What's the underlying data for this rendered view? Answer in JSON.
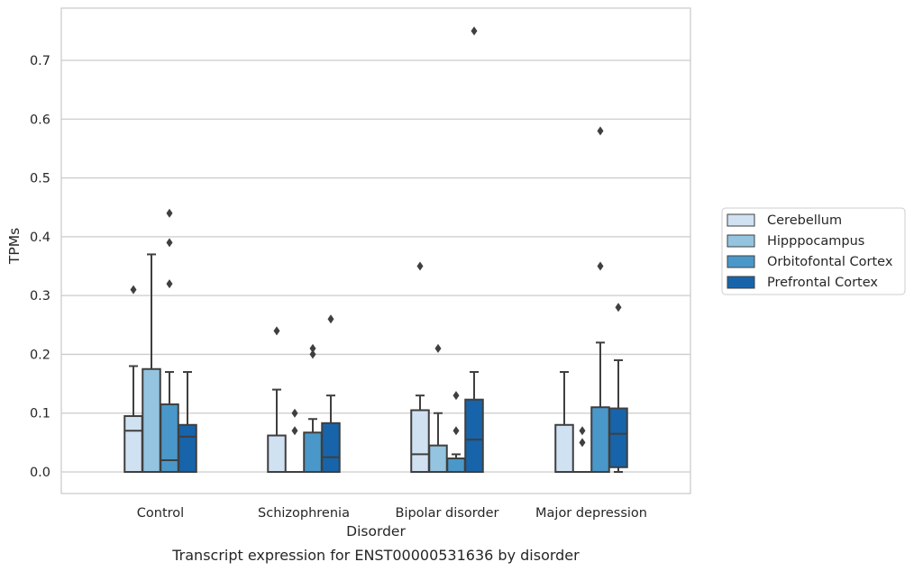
{
  "chart_data": {
    "type": "box",
    "caption": "Transcript expression for ENST00000531636 by disorder",
    "xlabel": "Disorder",
    "ylabel": "TPMs",
    "ylim": [
      -0.036,
      0.79
    ],
    "yticks": [
      0.0,
      0.1,
      0.2,
      0.3,
      0.4,
      0.5,
      0.6,
      0.7
    ],
    "ytick_labels": [
      "0.0",
      "0.1",
      "0.2",
      "0.3",
      "0.4",
      "0.5",
      "0.6",
      "0.7"
    ],
    "grid": "horizontal",
    "legend_position": "right",
    "categories": [
      "Control",
      "Schizophrenia",
      "Bipolar disorder",
      "Major depression"
    ],
    "series": [
      {
        "name": "Cerebellum",
        "color": "#d0e1f2",
        "boxes": [
          {
            "q1": 0.0,
            "median": 0.07,
            "q3": 0.095,
            "whisker_low": 0.0,
            "whisker_high": 0.18,
            "outliers": [
              0.31
            ]
          },
          {
            "q1": 0.0,
            "median": 0.0,
            "q3": 0.062,
            "whisker_low": 0.0,
            "whisker_high": 0.14,
            "outliers": [
              0.24
            ]
          },
          {
            "q1": 0.0,
            "median": 0.03,
            "q3": 0.105,
            "whisker_low": 0.0,
            "whisker_high": 0.13,
            "outliers": [
              0.35
            ]
          },
          {
            "q1": 0.0,
            "median": 0.0,
            "q3": 0.08,
            "whisker_low": 0.0,
            "whisker_high": 0.17,
            "outliers": []
          }
        ]
      },
      {
        "name": "Hipppocampus",
        "color": "#94c4df",
        "boxes": [
          {
            "q1": 0.0,
            "median": 0.0,
            "q3": 0.175,
            "whisker_low": 0.0,
            "whisker_high": 0.37,
            "outliers": []
          },
          {
            "q1": 0.0,
            "median": 0.0,
            "q3": 0.0,
            "whisker_low": 0.0,
            "whisker_high": 0.0,
            "outliers": [
              0.07,
              0.1
            ]
          },
          {
            "q1": 0.0,
            "median": 0.0,
            "q3": 0.045,
            "whisker_low": 0.0,
            "whisker_high": 0.1,
            "outliers": [
              0.21
            ]
          },
          {
            "q1": 0.0,
            "median": 0.0,
            "q3": 0.0,
            "whisker_low": 0.0,
            "whisker_high": 0.0,
            "outliers": [
              0.05,
              0.07
            ]
          }
        ]
      },
      {
        "name": "Orbitofontal Cortex",
        "color": "#4a98c9",
        "boxes": [
          {
            "q1": 0.0,
            "median": 0.02,
            "q3": 0.115,
            "whisker_low": 0.0,
            "whisker_high": 0.17,
            "outliers": [
              0.32,
              0.39,
              0.44
            ]
          },
          {
            "q1": 0.0,
            "median": 0.0,
            "q3": 0.067,
            "whisker_low": 0.0,
            "whisker_high": 0.09,
            "outliers": [
              0.2,
              0.21
            ]
          },
          {
            "q1": 0.0,
            "median": 0.0,
            "q3": 0.023,
            "whisker_low": 0.0,
            "whisker_high": 0.03,
            "outliers": [
              0.07,
              0.13
            ]
          },
          {
            "q1": 0.0,
            "median": 0.0,
            "q3": 0.11,
            "whisker_low": 0.0,
            "whisker_high": 0.22,
            "outliers": [
              0.35,
              0.58
            ]
          }
        ]
      },
      {
        "name": "Prefrontal Cortex",
        "color": "#1764ab",
        "boxes": [
          {
            "q1": 0.0,
            "median": 0.06,
            "q3": 0.08,
            "whisker_low": 0.0,
            "whisker_high": 0.17,
            "outliers": []
          },
          {
            "q1": 0.0,
            "median": 0.025,
            "q3": 0.083,
            "whisker_low": 0.0,
            "whisker_high": 0.13,
            "outliers": [
              0.26
            ]
          },
          {
            "q1": 0.0,
            "median": 0.055,
            "q3": 0.123,
            "whisker_low": 0.0,
            "whisker_high": 0.17,
            "outliers": [
              0.75
            ]
          },
          {
            "q1": 0.008,
            "median": 0.065,
            "q3": 0.108,
            "whisker_low": 0.0,
            "whisker_high": 0.19,
            "outliers": [
              0.28
            ]
          }
        ]
      }
    ]
  }
}
